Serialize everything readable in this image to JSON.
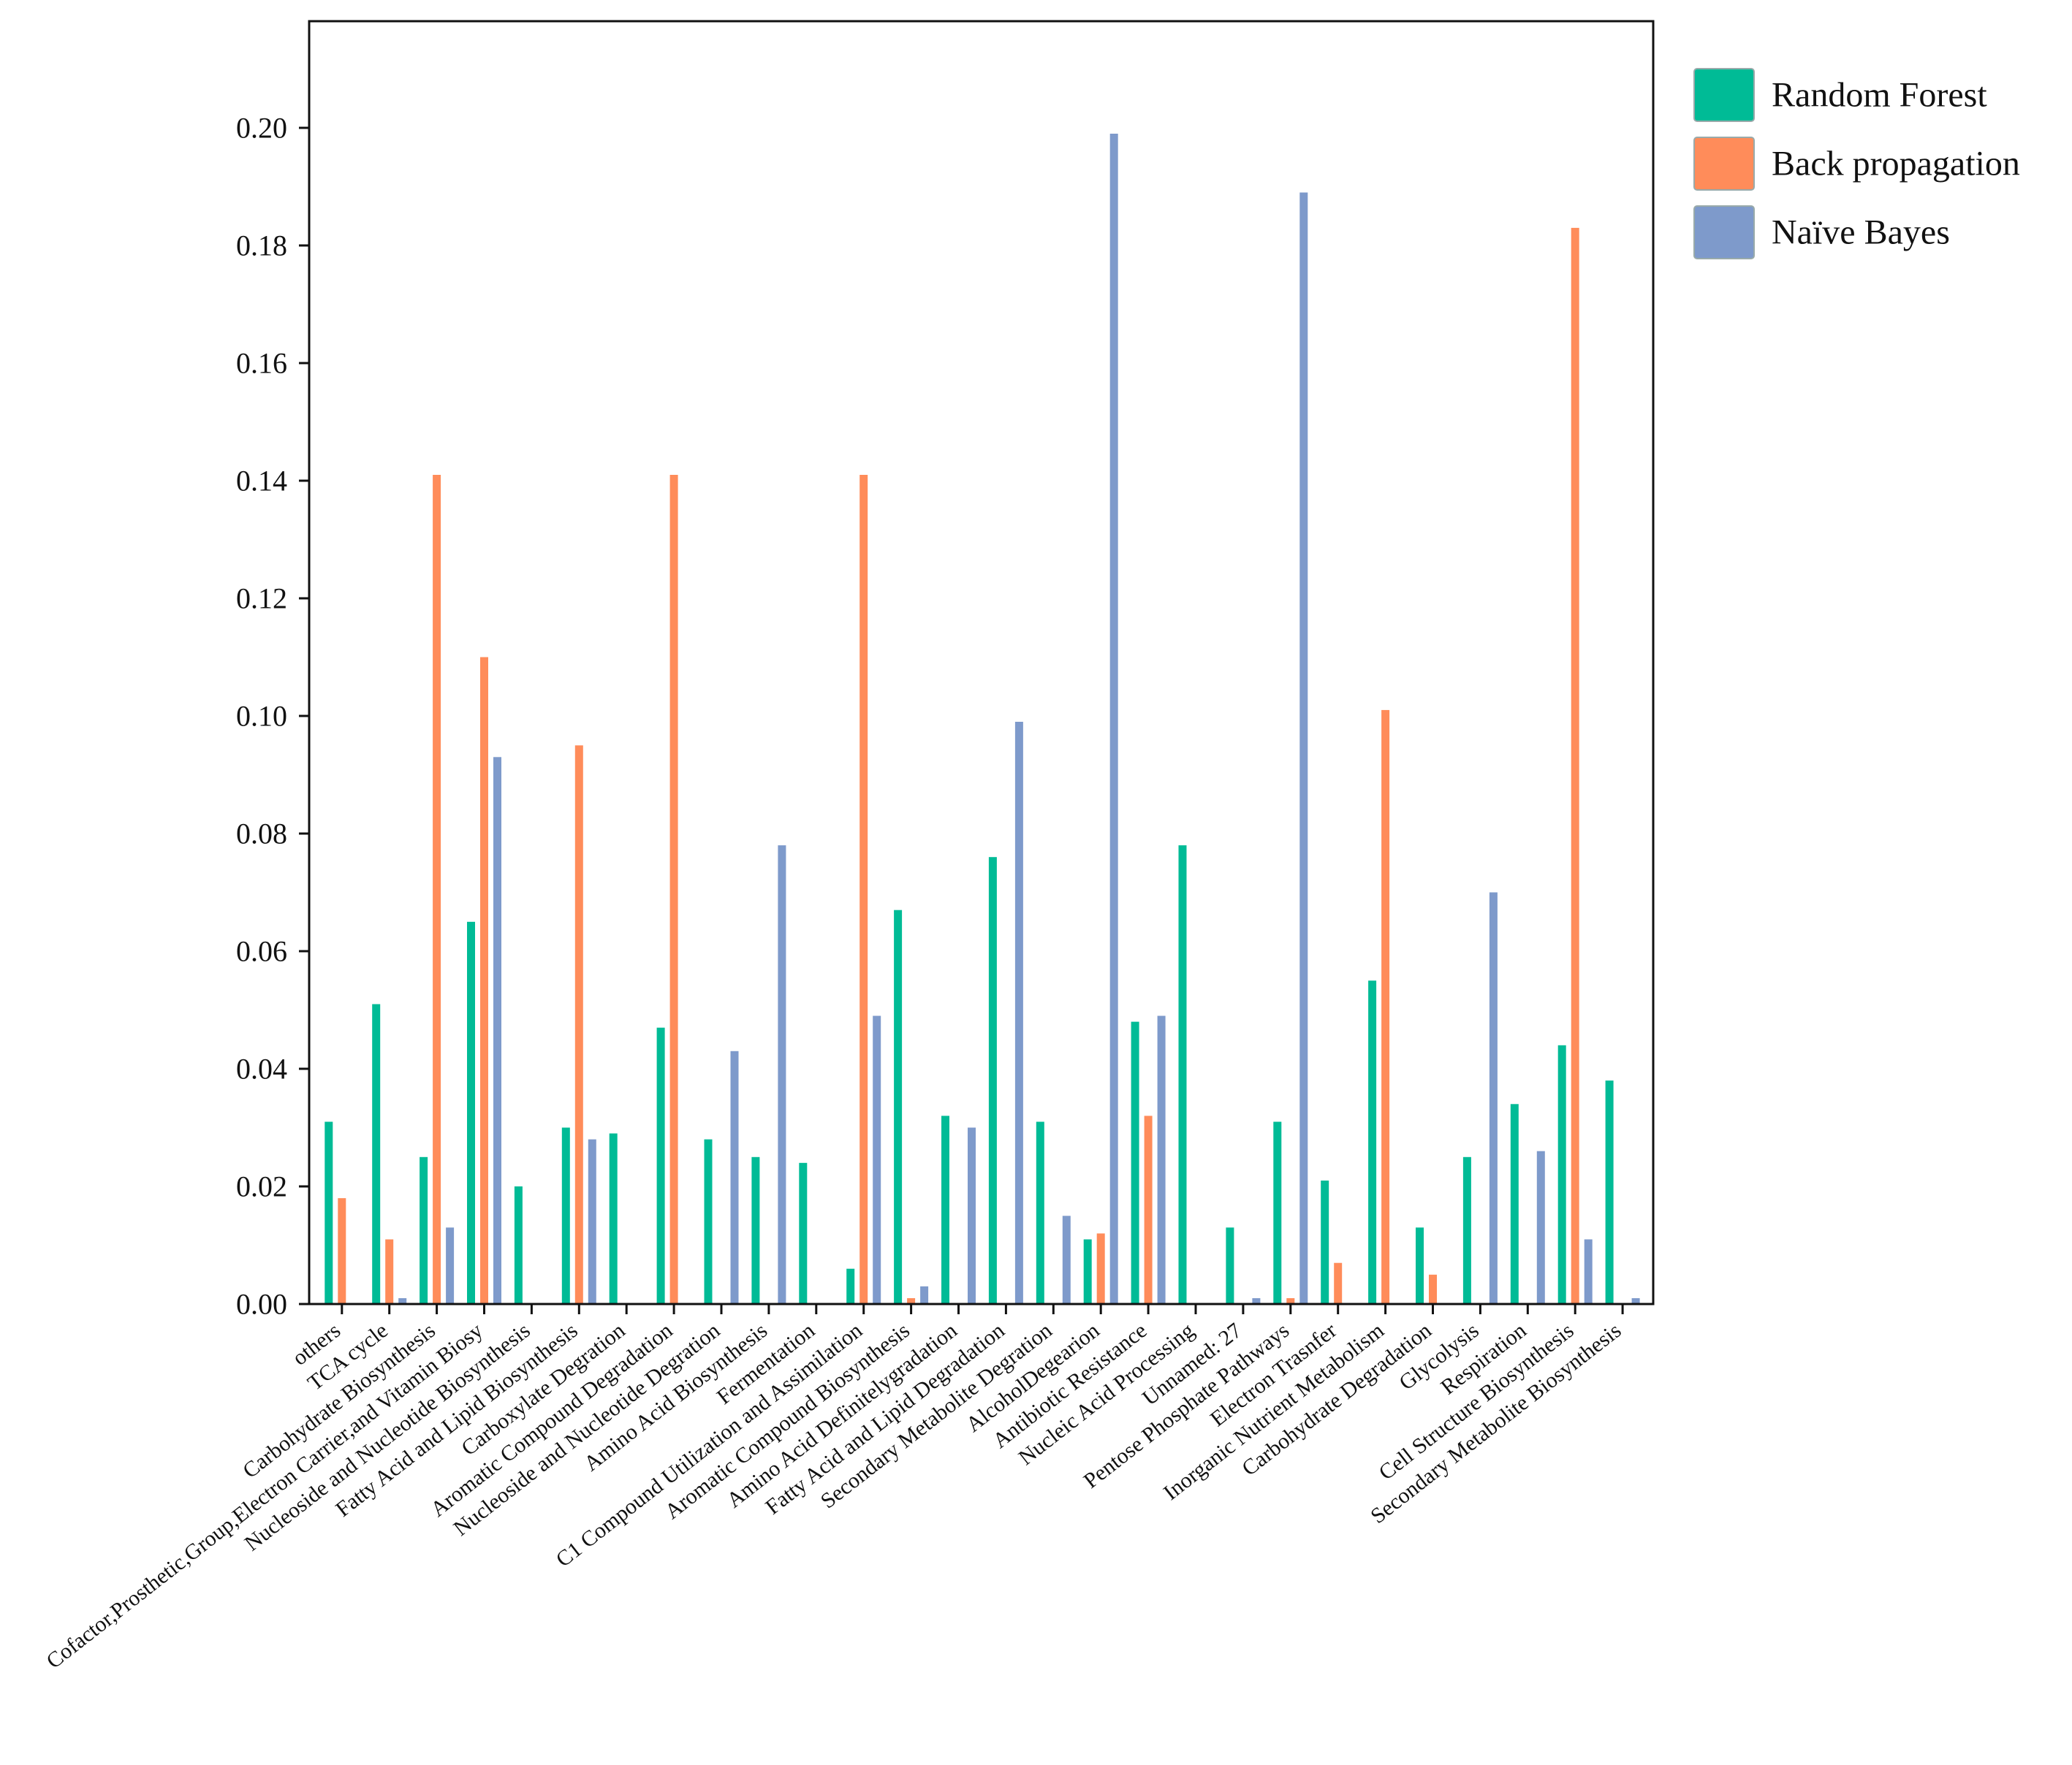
{
  "chart_data": {
    "type": "bar",
    "title": "",
    "xlabel": "",
    "ylabel": "",
    "ylim": [
      0,
      0.22
    ],
    "yticks": [
      "0.00",
      "0.02",
      "0.04",
      "0.06",
      "0.08",
      "0.10",
      "0.12",
      "0.14",
      "0.16",
      "0.18",
      "0.20"
    ],
    "legend_position": "top-right",
    "categories": [
      "others",
      "TCA cycle",
      "Carbohydrate Biosynthesis",
      "Cofactor,Prosthetic,Group,Electron Carrier,and Vitamin Biosy",
      "Nucleoside and Nucleotide Biosynthesis",
      "Fatty Acid and Lipid Biosynthesis",
      "Carboxylate Degration",
      "Aromatic Compound Degradation",
      "Nucleoside and Nucleotide Degration",
      "Amino Acid Biosynthesis",
      "Fermentation",
      "C1 Compound Utilization and Assimilation",
      "Aromatic Compound Biosynthesis",
      "Amino Acid Definitelygradation",
      "Fatty Acid and Lipid Degradation",
      "Secondary Metabolite Degration",
      "AlcoholDegearion",
      "Antibiotic Resistance",
      "Nucleic Acid Processing",
      "Unnamed: 27",
      "Pentose Phosphate Pathways",
      "Electron Trasnfer",
      "Inorganic Nutrient Metabolism",
      "Carbohydrate Degradation",
      "Glycolysis",
      "Respiration",
      "Cell Structure Biosynthesis",
      "Secondary Metabolite Biosynthesis"
    ],
    "series": [
      {
        "name": "Random Forest",
        "color": "#00BB96",
        "values": [
          0.031,
          0.051,
          0.025,
          0.065,
          0.02,
          0.03,
          0.029,
          0.047,
          0.028,
          0.025,
          0.024,
          0.006,
          0.067,
          0.032,
          0.076,
          0.031,
          0.011,
          0.048,
          0.078,
          0.013,
          0.031,
          0.021,
          0.055,
          0.013,
          0.025,
          0.034,
          0.044,
          0.038
        ]
      },
      {
        "name": "Back propagation",
        "color": "#FF8C5A",
        "values": [
          0.018,
          0.011,
          0.141,
          0.11,
          0.0,
          0.095,
          0.0,
          0.141,
          0.0,
          0.0,
          0.0,
          0.141,
          0.001,
          0.0,
          0.0,
          0.0,
          0.012,
          0.032,
          0.0,
          0.0,
          0.001,
          0.007,
          0.101,
          0.005,
          0.0,
          0.0,
          0.183,
          0.0
        ]
      },
      {
        "name": "Naïve Bayes",
        "color": "#7E9ACB",
        "values": [
          0.0,
          0.001,
          0.013,
          0.093,
          0.0,
          0.028,
          0.0,
          0.0,
          0.043,
          0.078,
          0.0,
          0.049,
          0.003,
          0.03,
          0.099,
          0.015,
          0.199,
          0.049,
          0.0,
          0.001,
          0.189,
          0.0,
          0.0,
          0.0,
          0.07,
          0.026,
          0.011,
          0.001
        ]
      }
    ]
  }
}
